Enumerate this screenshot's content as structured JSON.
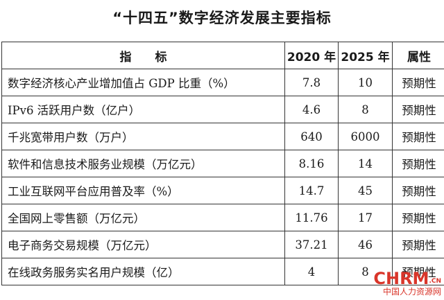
{
  "title": "“十四五”数字经济发展主要指标",
  "table": {
    "headers": {
      "indicator": "指　　标",
      "y2020": "2020 年",
      "y2025": "2025 年",
      "attr": "属性"
    },
    "rows": [
      {
        "name": "数字经济核心产业增加值占 GDP 比重（%）",
        "y2020": "7.8",
        "y2025": "10",
        "attr": "预期性"
      },
      {
        "name": "IPv6 活跃用户数（亿户）",
        "y2020": "4.6",
        "y2025": "8",
        "attr": "预期性"
      },
      {
        "name": "千兆宽带用户数（万户）",
        "y2020": "640",
        "y2025": "6000",
        "attr": "预期性"
      },
      {
        "name": "软件和信息技术服务业规模（万亿元）",
        "y2020": "8.16",
        "y2025": "14",
        "attr": "预期性"
      },
      {
        "name": "工业互联网平台应用普及率（%）",
        "y2020": "14.7",
        "y2025": "45",
        "attr": "预期性"
      },
      {
        "name": "全国网上零售额（万亿元）",
        "y2020": "11.76",
        "y2025": "17",
        "attr": "预期性"
      },
      {
        "name": "电子商务交易规模（万亿元）",
        "y2020": "37.21",
        "y2025": "46",
        "attr": "预期性"
      },
      {
        "name": "在线政务服务实名用户规模（亿）",
        "y2020": "4",
        "y2025": "8",
        "attr": "预期性"
      }
    ]
  },
  "watermark": {
    "logo": "CHRM",
    "domain": ".CN",
    "text": "中国人力资源网"
  }
}
